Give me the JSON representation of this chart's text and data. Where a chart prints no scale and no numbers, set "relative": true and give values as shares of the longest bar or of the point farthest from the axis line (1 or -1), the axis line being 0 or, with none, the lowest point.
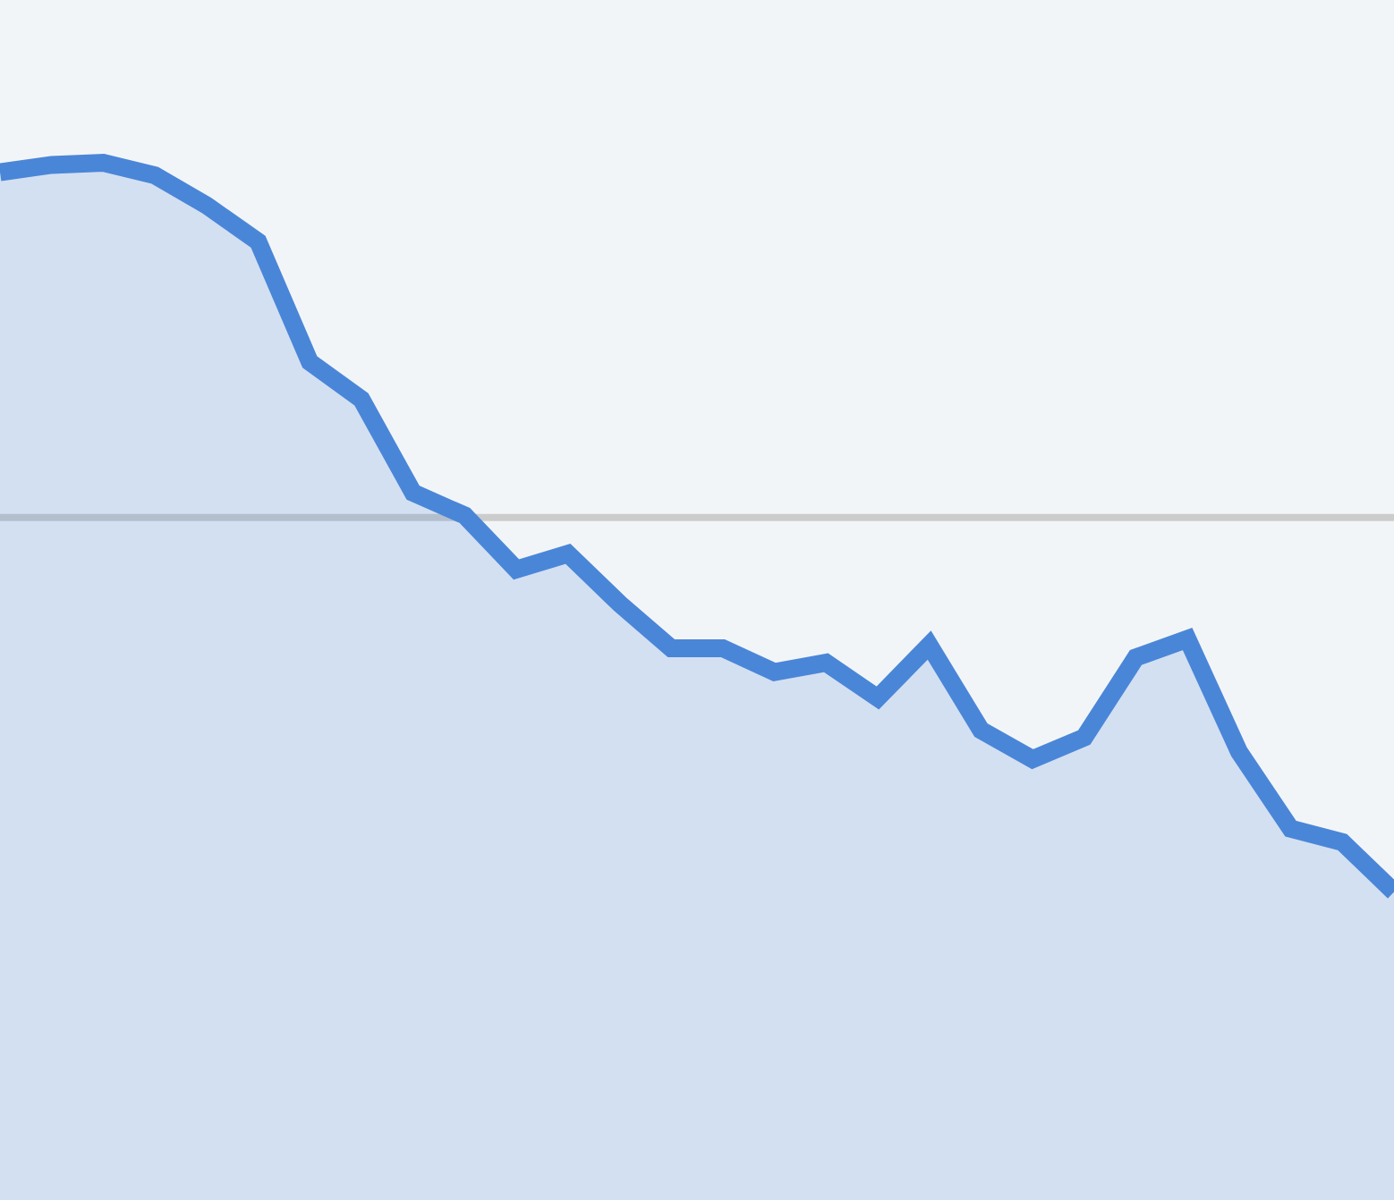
{
  "chart_data": {
    "type": "area",
    "relative": true,
    "categories": [
      null,
      null,
      null,
      null,
      null,
      null,
      null,
      null,
      null,
      null,
      null,
      null,
      null,
      null,
      null,
      null,
      null,
      null,
      null,
      null,
      null,
      null,
      null,
      null,
      null,
      null,
      null,
      null
    ],
    "series": [
      {
        "color": "#4a86d8",
        "values": [
          0.991,
          0.998,
          1,
          0.988,
          0.959,
          0.924,
          0.808,
          0.772,
          0.682,
          0.66,
          0.608,
          0.623,
          0.575,
          0.532,
          0.532,
          0.509,
          0.518,
          0.484,
          0.535,
          0.453,
          0.425,
          0.446,
          0.523,
          0.541,
          0.432,
          0.358,
          0.345,
          0.297
        ]
      }
    ],
    "ref_lines": [
      {
        "axis": "y",
        "value": 0.658,
        "color": "#cccccc"
      }
    ],
    "grid": false,
    "legend": false,
    "marker": "none",
    "line_style": "solid"
  }
}
